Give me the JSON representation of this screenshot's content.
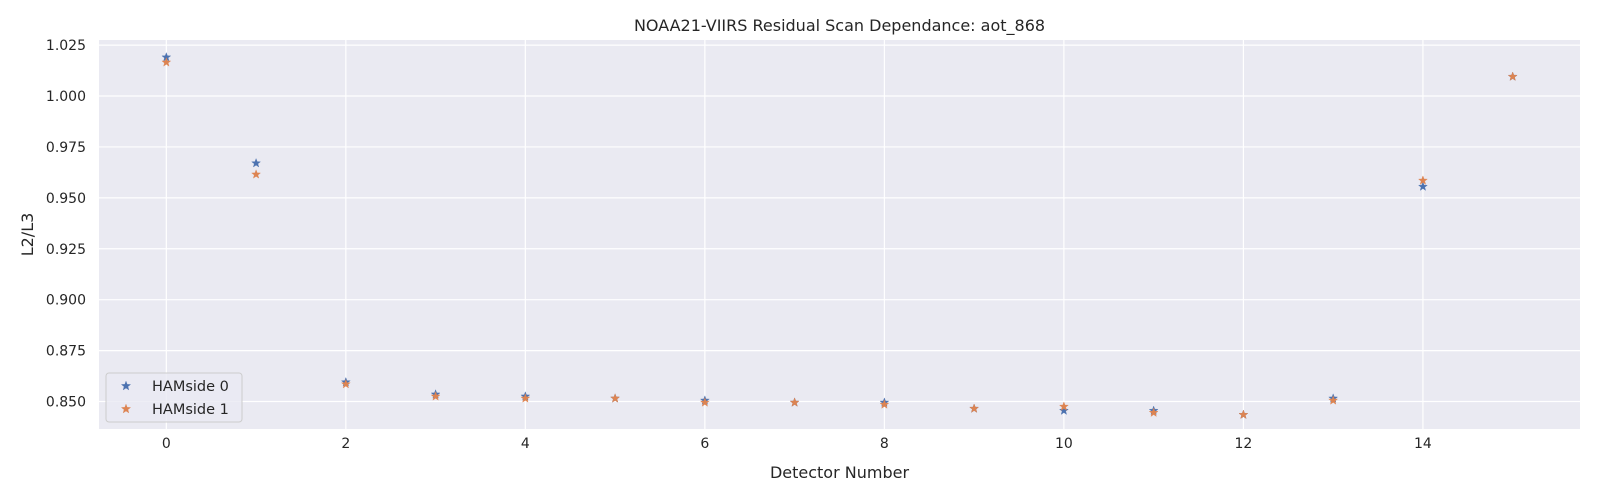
{
  "chart_data": {
    "type": "scatter",
    "title": "NOAA21-VIIRS Residual Scan Dependance: aot_868",
    "xlabel": "Detector Number",
    "ylabel": "L2/L3",
    "xlim": [
      -0.75,
      15.75
    ],
    "ylim": [
      0.8365,
      1.0275
    ],
    "x_ticks": [
      0,
      2,
      4,
      6,
      8,
      10,
      12,
      14
    ],
    "y_ticks": [
      0.85,
      0.875,
      0.9,
      0.925,
      0.95,
      0.975,
      1.0,
      1.025
    ],
    "grid": true,
    "legend_position": "lower-left",
    "marker": "star",
    "x": [
      0,
      1,
      2,
      3,
      4,
      5,
      6,
      7,
      8,
      9,
      10,
      11,
      12,
      13,
      14,
      15
    ],
    "series": [
      {
        "name": "HAMside 0",
        "color": "#4c72b0",
        "values": [
          1.019,
          0.967,
          0.8595,
          0.8535,
          0.8525,
          0.8515,
          0.8505,
          0.8495,
          0.8495,
          0.8465,
          0.8455,
          0.8455,
          0.8435,
          0.8515,
          0.9555,
          1.0095
        ]
      },
      {
        "name": "HAMside 1",
        "color": "#dd8452",
        "values": [
          1.0165,
          0.9615,
          0.8585,
          0.8525,
          0.8515,
          0.8515,
          0.8495,
          0.8495,
          0.8485,
          0.8465,
          0.8475,
          0.8445,
          0.8435,
          0.8505,
          0.9585,
          1.0095
        ]
      }
    ]
  }
}
